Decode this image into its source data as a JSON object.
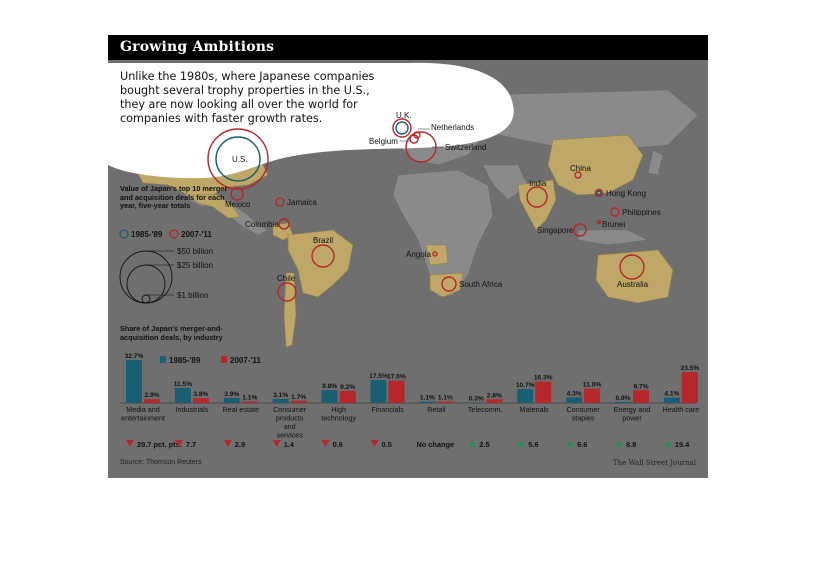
{
  "title": "Growing Ambitions",
  "intro": "Unlike the 1980s, where Japanese companies bought several trophy properties in the U.S., they are now looking all over the world for companies with faster growth rates.",
  "colors": {
    "period_1985_89": "#1a5e74",
    "period_2007_11": "#b5272a",
    "land": "#bfa867",
    "background": "#6f6f6f",
    "increase": "#2e8b57",
    "decrease": "#b5272a"
  },
  "map": {
    "legend_title": "Value of Japan's top 10 merger and acquisition deals for each year, five-year totals",
    "legend_periods": [
      "1985-'89",
      "2007-'11"
    ],
    "size_legend": [
      "$50 billion",
      "$25 billion",
      "$1 billion"
    ],
    "locations": [
      {
        "label": "U.K.",
        "period": "both"
      },
      {
        "label": "Netherlands",
        "period": "2007-'11"
      },
      {
        "label": "Belgium",
        "period": "2007-'11"
      },
      {
        "label": "Switzerland",
        "period": "2007-'11"
      },
      {
        "label": "U.S.",
        "period": "both"
      },
      {
        "label": "Mexico",
        "period": "2007-'11"
      },
      {
        "label": "Jamaica",
        "period": "2007-'11"
      },
      {
        "label": "Colombia",
        "period": "2007-'11"
      },
      {
        "label": "Brazil",
        "period": "2007-'11"
      },
      {
        "label": "Chile",
        "period": "2007-'11"
      },
      {
        "label": "Angola",
        "period": "2007-'11"
      },
      {
        "label": "South Africa",
        "period": "2007-'11"
      },
      {
        "label": "India",
        "period": "2007-'11"
      },
      {
        "label": "China",
        "period": "2007-'11"
      },
      {
        "label": "Hong Kong",
        "period": "both"
      },
      {
        "label": "Philippines",
        "period": "2007-'11"
      },
      {
        "label": "Singapore",
        "period": "2007-'11"
      },
      {
        "label": "Brunei",
        "period": "2007-'11"
      },
      {
        "label": "Australia",
        "period": "2007-'11"
      }
    ]
  },
  "chart_data": {
    "type": "bar",
    "title": "Share of Japan's merger-and-acquisition deals, by industry",
    "unit": "%",
    "categories": [
      "Media and entertainment",
      "Industrials",
      "Real estate",
      "Consumer products and services",
      "High technology",
      "Financials",
      "Retail",
      "Telecomm.",
      "Materials",
      "Consumer staples",
      "Energy and power",
      "Health care"
    ],
    "series": [
      {
        "name": "1985-'89",
        "values": [
          32.7,
          11.5,
          3.9,
          3.1,
          9.8,
          17.5,
          1.1,
          0.3,
          10.7,
          4.3,
          0.9,
          4.1
        ],
        "labels": [
          "32.7%",
          "11.5%",
          "3.9%",
          "3.1%",
          "9.8%",
          "17.5%",
          "1.1%",
          "0.3%",
          "10.7%",
          "4.3%",
          "0.9%",
          "4.1%"
        ]
      },
      {
        "name": "2007-'11",
        "values": [
          2.9,
          3.8,
          1.1,
          1.7,
          9.2,
          17.0,
          1.1,
          2.8,
          16.3,
          11.0,
          9.7,
          23.5
        ],
        "labels": [
          "2.9%",
          "3.8%",
          "1.1%",
          "1.7%",
          "9.2%",
          "17.0%",
          "1.1%",
          "2.8%",
          "16.3%",
          "11.0%",
          "9.7%",
          "23.5%"
        ]
      }
    ],
    "change": [
      {
        "dir": "down",
        "label": "29.7 pct. pts."
      },
      {
        "dir": "down",
        "label": "7.7"
      },
      {
        "dir": "down",
        "label": "2.9"
      },
      {
        "dir": "down",
        "label": "1.4"
      },
      {
        "dir": "down",
        "label": "0.6"
      },
      {
        "dir": "down",
        "label": "0.5"
      },
      {
        "dir": "none",
        "label": "No change"
      },
      {
        "dir": "up",
        "label": "2.5"
      },
      {
        "dir": "up",
        "label": "5.6"
      },
      {
        "dir": "up",
        "label": "6.6"
      },
      {
        "dir": "up",
        "label": "8.8"
      },
      {
        "dir": "up",
        "label": "19.4"
      }
    ],
    "ylim": [
      0,
      35
    ]
  },
  "source": "Source: Thomson Reuters",
  "credit": "The Wall Street Journal"
}
